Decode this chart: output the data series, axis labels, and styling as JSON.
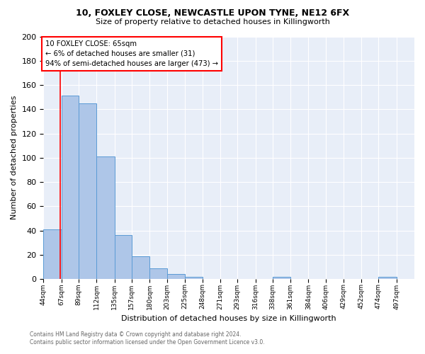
{
  "title1": "10, FOXLEY CLOSE, NEWCASTLE UPON TYNE, NE12 6FX",
  "title2": "Size of property relative to detached houses in Killingworth",
  "xlabel": "Distribution of detached houses by size in Killingworth",
  "ylabel": "Number of detached properties",
  "footnote1": "Contains HM Land Registry data © Crown copyright and database right 2024.",
  "footnote2": "Contains public sector information licensed under the Open Government Licence v3.0.",
  "bin_labels": [
    "44sqm",
    "67sqm",
    "89sqm",
    "112sqm",
    "135sqm",
    "157sqm",
    "180sqm",
    "203sqm",
    "225sqm",
    "248sqm",
    "271sqm",
    "293sqm",
    "316sqm",
    "338sqm",
    "361sqm",
    "384sqm",
    "406sqm",
    "429sqm",
    "452sqm",
    "474sqm",
    "497sqm"
  ],
  "bin_edges": [
    44,
    67,
    89,
    112,
    135,
    157,
    180,
    203,
    225,
    248,
    271,
    293,
    316,
    338,
    361,
    384,
    406,
    429,
    452,
    474,
    497,
    520
  ],
  "bar_values": [
    41,
    151,
    145,
    101,
    36,
    19,
    9,
    4,
    2,
    0,
    0,
    0,
    0,
    2,
    0,
    0,
    0,
    0,
    0,
    2,
    0
  ],
  "bar_color": "#aec6e8",
  "bar_edge_color": "#5b9bd5",
  "red_line_x": 65,
  "annotation_text": "10 FOXLEY CLOSE: 65sqm\n← 6% of detached houses are smaller (31)\n94% of semi-detached houses are larger (473) →",
  "annotation_box_color": "white",
  "annotation_border_color": "red",
  "ylim": [
    0,
    200
  ],
  "yticks": [
    0,
    20,
    40,
    60,
    80,
    100,
    120,
    140,
    160,
    180,
    200
  ],
  "background_color": "#e8eef8",
  "grid_color": "white"
}
